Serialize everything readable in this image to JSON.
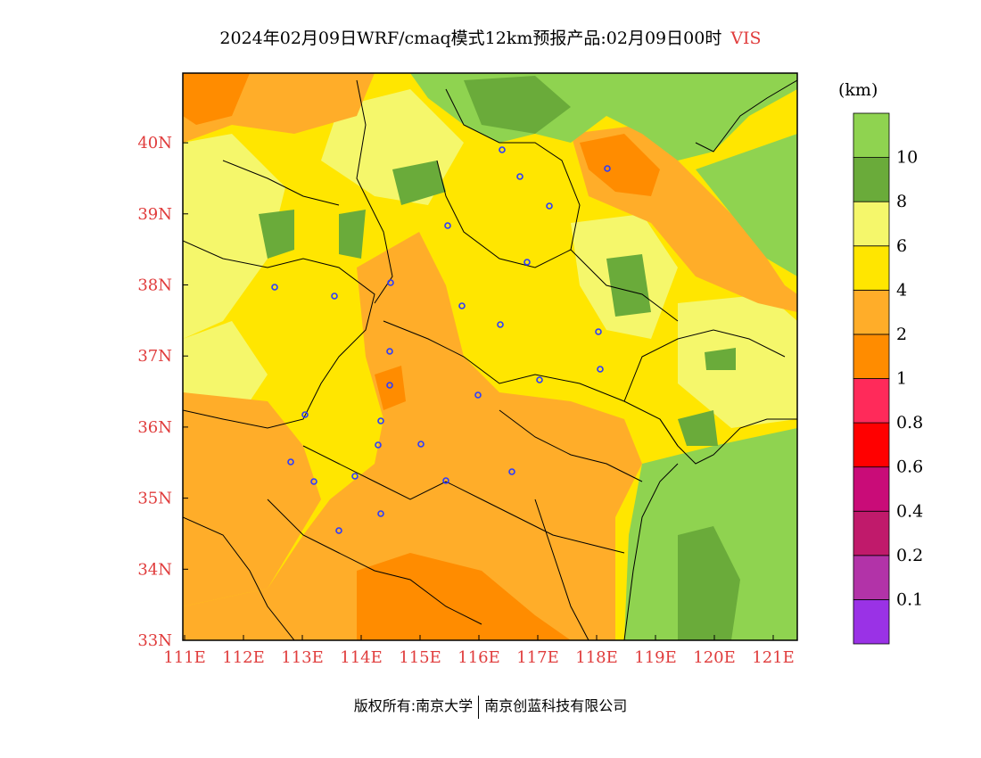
{
  "title": {
    "main": "2024年02月09日WRF/cmaq模式12km预报产品:02月09日00时",
    "variable": "VIS"
  },
  "colorbar": {
    "unit": "(km)",
    "colors": [
      "#9a32e6",
      "#b233a8",
      "#c01a6b",
      "#c90c78",
      "#ff0000",
      "#ff2a5a",
      "#ff8c00",
      "#ffad29",
      "#ffe600",
      "#f5f76b",
      "#6aab3a",
      "#8fd350"
    ],
    "labels": [
      "0.1",
      "0.2",
      "0.4",
      "0.6",
      "0.8",
      "1",
      "2",
      "4",
      "6",
      "8",
      "10"
    ]
  },
  "axes": {
    "x_ticks": [
      "111E",
      "112E",
      "113E",
      "114E",
      "115E",
      "116E",
      "117E",
      "118E",
      "119E",
      "120E",
      "121E"
    ],
    "y_ticks": [
      "33N",
      "34N",
      "35N",
      "36N",
      "37N",
      "38N",
      "39N",
      "40N"
    ],
    "tick_color": "#e03c3c"
  },
  "footer": {
    "left": "版权所有:南京大学",
    "right": "南京创蓝科技有限公司"
  }
}
